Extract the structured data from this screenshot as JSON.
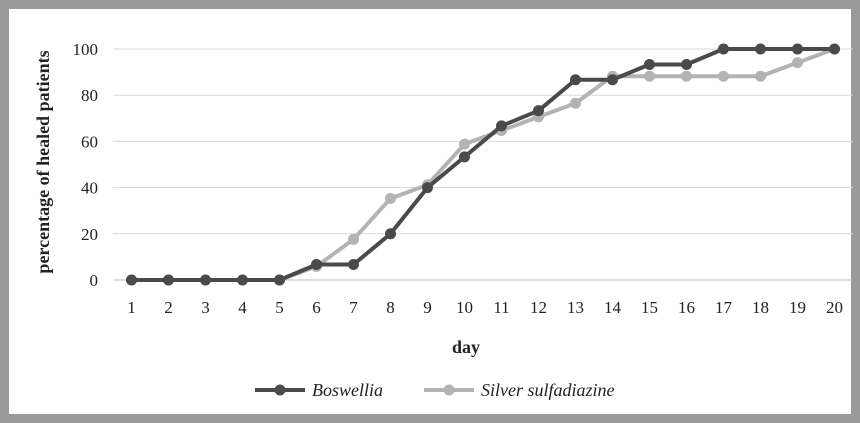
{
  "chart_data": {
    "type": "line",
    "title": "",
    "xlabel": "day",
    "ylabel": "percentage of healed patients",
    "x": [
      1,
      2,
      3,
      4,
      5,
      6,
      7,
      8,
      9,
      10,
      11,
      12,
      13,
      14,
      15,
      16,
      17,
      18,
      19,
      20
    ],
    "ylim": [
      0,
      100
    ],
    "yticks": [
      0,
      20,
      40,
      60,
      80,
      100
    ],
    "grid": "horizontal",
    "legend_position": "bottom",
    "series": [
      {
        "name": "Boswellia",
        "color": "#4a4a4a",
        "values": [
          0,
          0,
          0,
          0,
          0,
          6.7,
          6.7,
          20,
          40,
          53.3,
          66.7,
          73.3,
          86.7,
          86.7,
          93.3,
          93.3,
          100,
          100,
          100,
          100
        ]
      },
      {
        "name": "Silver sulfadiazine",
        "color": "#b3b3b3",
        "values": [
          0,
          0,
          0,
          0,
          0,
          5.9,
          17.6,
          35.3,
          41.2,
          58.8,
          64.7,
          70.6,
          76.5,
          88.2,
          88.2,
          88.2,
          88.2,
          88.2,
          94.1,
          100
        ]
      }
    ]
  }
}
